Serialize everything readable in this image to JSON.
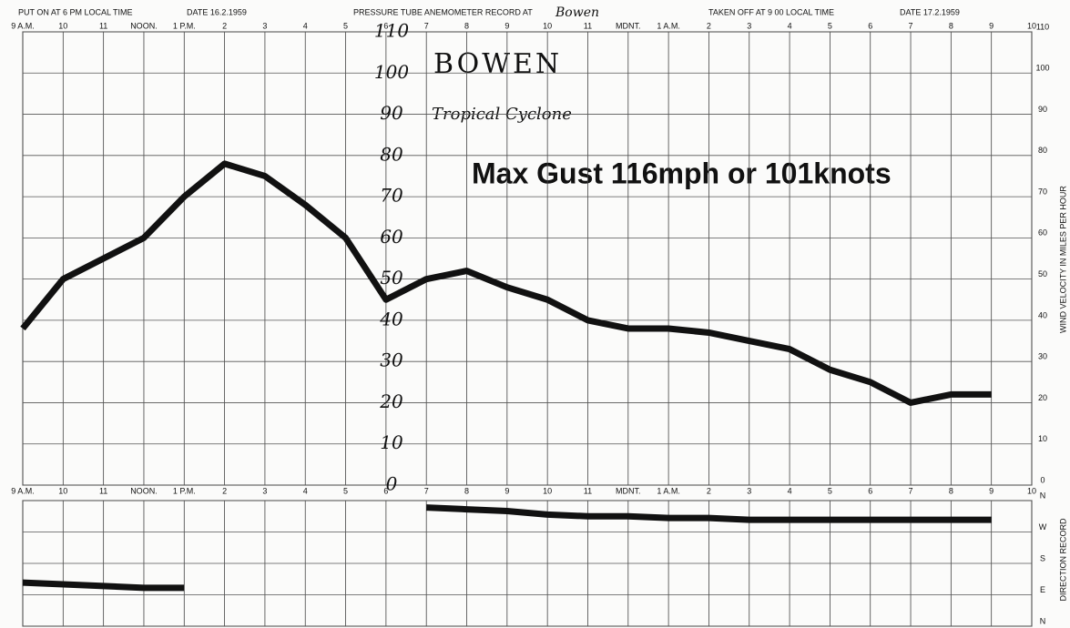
{
  "header": {
    "put_on": "PUT ON AT 6 PM LOCAL TIME",
    "date_on": "DATE 16.2.1959",
    "record": "PRESSURE TUBE ANEMOMETER RECORD AT",
    "station": "Bowen",
    "taken_off": "TAKEN OFF AT 9 00 LOCAL TIME",
    "date_off": "DATE 17.2.1959"
  },
  "chart_data": [
    {
      "type": "line",
      "annotations": [
        "BOWEN",
        "Tropical Cyclone",
        "Max Gust 116mph or 101knots"
      ],
      "ylabel": "WIND VELOCITY IN MILES PER HOUR",
      "categories": [
        "9 A.M.",
        "10",
        "11",
        "NOON.",
        "1 P.M.",
        "2",
        "3",
        "4",
        "5",
        "6",
        "7",
        "8",
        "9",
        "10",
        "11",
        "MDNT.",
        "1 A.M.",
        "2",
        "3",
        "4",
        "5",
        "6",
        "7",
        "8",
        "9",
        "10"
      ],
      "values": [
        38,
        50,
        55,
        60,
        70,
        78,
        75,
        68,
        60,
        45,
        50,
        52,
        48,
        45,
        40,
        38,
        38,
        37,
        35,
        33,
        28,
        25,
        20,
        22,
        22,
        null
      ],
      "color": "#111111",
      "ylim": [
        0,
        110
      ],
      "yticks": [
        0,
        10,
        20,
        30,
        40,
        50,
        60,
        70,
        80,
        90,
        100,
        110
      ],
      "grid": true
    },
    {
      "type": "line",
      "ylabel": "DIRECTION RECORD",
      "categories": [
        "9 A.M.",
        "10",
        "11",
        "NOON.",
        "1 P.M.",
        "2",
        "3",
        "4",
        "5",
        "6",
        "7",
        "8",
        "9",
        "10",
        "11",
        "MDNT.",
        "1 A.M.",
        "2",
        "3",
        "4",
        "5",
        "6",
        "7",
        "8",
        "9",
        "10"
      ],
      "values": [
        125,
        120,
        115,
        110,
        110,
        null,
        null,
        null,
        null,
        null,
        340,
        335,
        330,
        320,
        315,
        315,
        310,
        310,
        305,
        305,
        305,
        305,
        305,
        305,
        305,
        null
      ],
      "color": "#111111",
      "ylim": [
        0,
        360
      ],
      "yticks": [
        {
          "value": 0,
          "label": "N"
        },
        {
          "value": 90,
          "label": "E"
        },
        {
          "value": 180,
          "label": "S"
        },
        {
          "value": 270,
          "label": "W"
        },
        {
          "value": 360,
          "label": "N"
        }
      ],
      "grid": true
    }
  ]
}
